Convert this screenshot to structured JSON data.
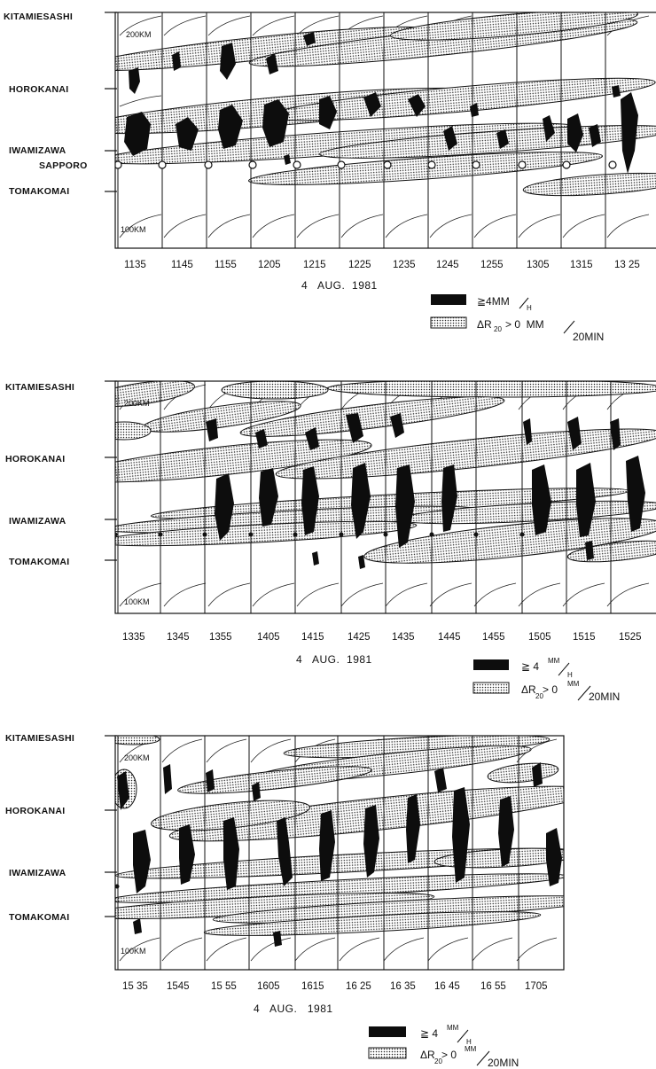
{
  "panels": [
    {
      "id": "p1",
      "stations": {
        "kitamiesashi": "KITAMIESASHI",
        "horokanai": "HOROKANAI",
        "iwamizawa": "IWAMIZAWA",
        "sapporo": "SAPPORO",
        "tomakomai": "TOMAKOMAI"
      },
      "range_top": "200KM",
      "range_bottom": "100KM",
      "times": [
        "1135",
        "1145",
        "1155",
        "1205",
        "1215",
        "1225",
        "1235",
        "1245",
        "1255",
        "1305",
        "1315",
        "13 25"
      ],
      "date": "4   AUG.  1981",
      "legend": {
        "heavy": "≧4MM",
        "heavy_unit": "H",
        "delta": "ΔR",
        "delta_sub": "20",
        "delta_rest": "> 0  MM",
        "delta_unit": "20MIN"
      }
    },
    {
      "id": "p2",
      "stations": {
        "kitamiesashi": "KITAMIESASHI",
        "horokanai": "HOROKANAI",
        "iwamizawa": "IWAMIZAWA",
        "tomakomai": "TOMAKOMAI"
      },
      "range_top": "200KM",
      "range_bottom": "100KM",
      "times": [
        "1335",
        "1345",
        "1355",
        "1405",
        "1415",
        "1425",
        "1435",
        "1445",
        "1455",
        "1505",
        "1515",
        "1525"
      ],
      "date": "4   AUG.  1981",
      "legend": {
        "heavy": "≧ 4",
        "heavy_unit_top": "MM",
        "heavy_unit": "H",
        "delta": "ΔR",
        "delta_sub": "20",
        "delta_rest": "> 0",
        "delta_unit_top": "MM",
        "delta_unit": "20MIN"
      }
    },
    {
      "id": "p3",
      "stations": {
        "kitamiesashi": "KITAMIESASHI",
        "horokanai": "HOROKANAI",
        "iwamizawa": "IWAMIZAWA",
        "tomakomai": "TOMAKOMAI"
      },
      "range_top": "200KM",
      "range_bottom": "100KM",
      "times": [
        "15 35",
        "1545",
        "15 55",
        "1605",
        "1615",
        "16 25",
        "16 35",
        "16 45",
        "16 55",
        "1705"
      ],
      "date": "4   AUG.   1981",
      "legend": {
        "heavy": "≧ 4",
        "heavy_unit_top": "MM",
        "heavy_unit": "H",
        "delta": "ΔR",
        "delta_sub": "20",
        "delta_rest": "> 0",
        "delta_unit_top": "MM",
        "delta_unit": "20MIN"
      }
    }
  ]
}
